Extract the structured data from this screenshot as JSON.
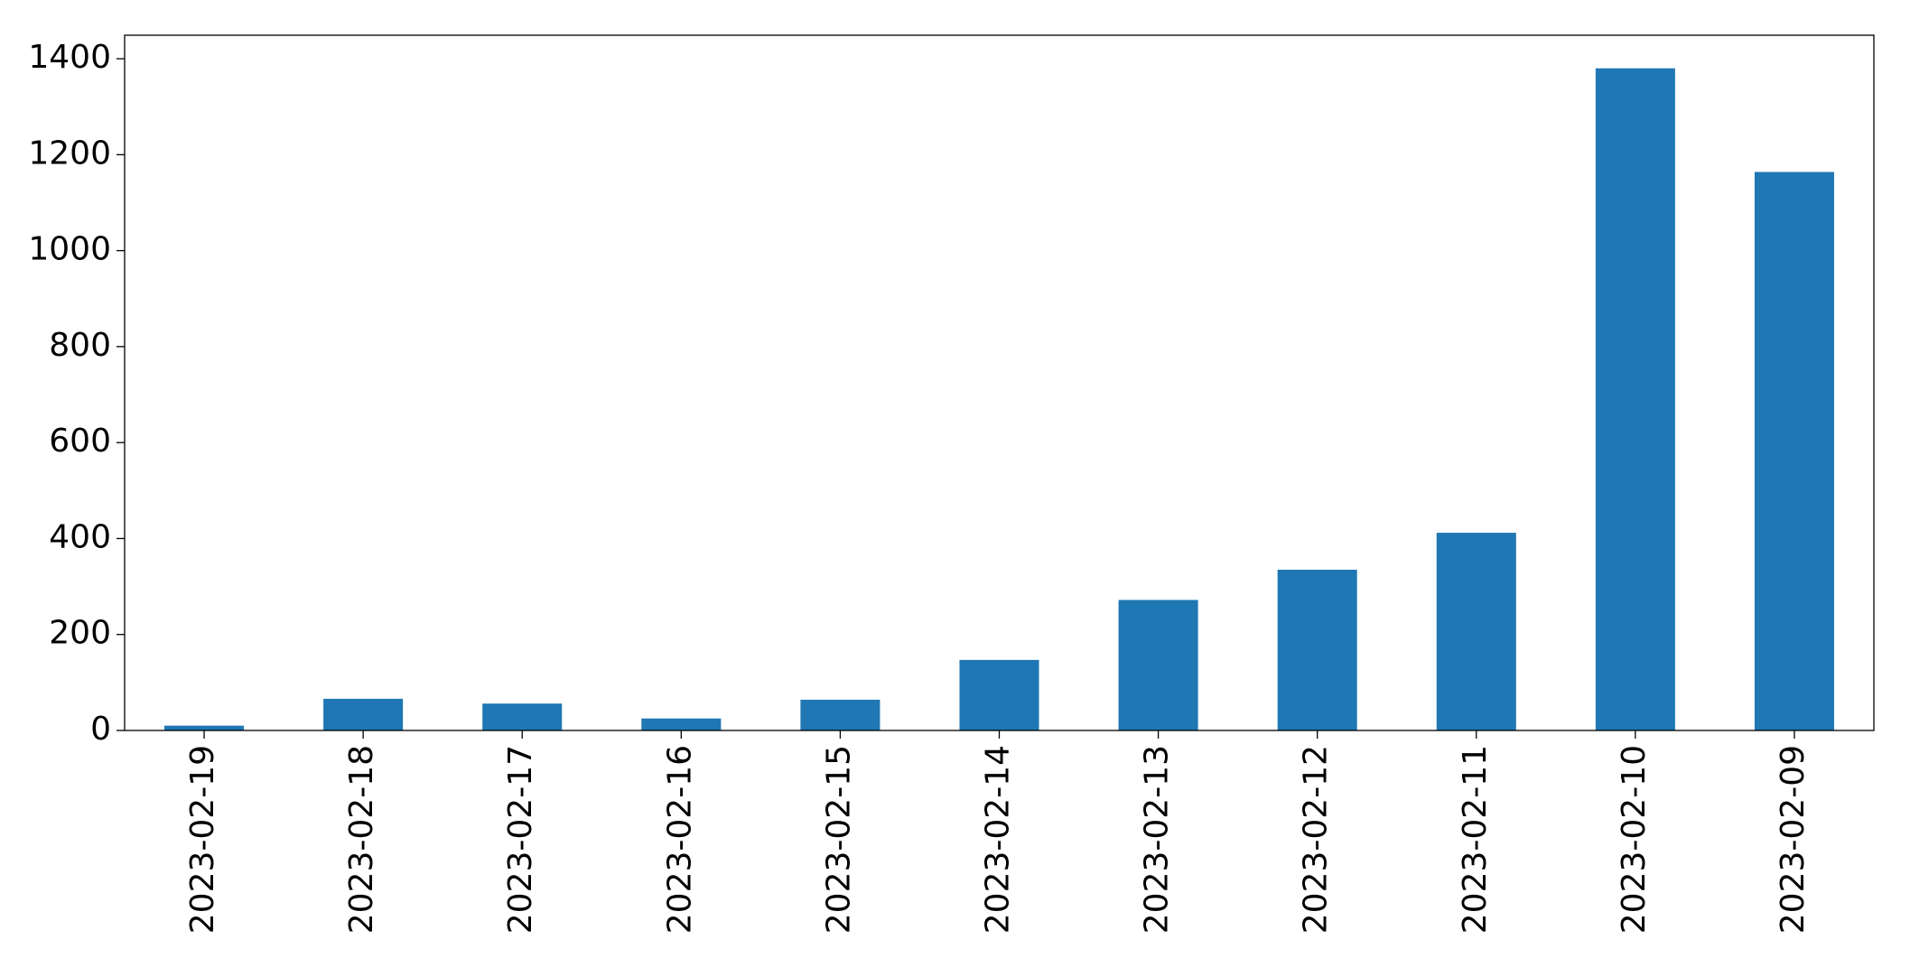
{
  "chart_data": {
    "type": "bar",
    "categories": [
      "2023-02-19",
      "2023-02-18",
      "2023-02-17",
      "2023-02-16",
      "2023-02-15",
      "2023-02-14",
      "2023-02-13",
      "2023-02-12",
      "2023-02-11",
      "2023-02-10",
      "2023-02-09"
    ],
    "values": [
      10,
      66,
      56,
      25,
      64,
      147,
      272,
      335,
      412,
      1380,
      1164
    ],
    "color": "#1f77b4",
    "ylim": [
      0,
      1449
    ],
    "yticks": [
      0,
      200,
      400,
      600,
      800,
      1000,
      1200,
      1400
    ],
    "grid": false
  }
}
